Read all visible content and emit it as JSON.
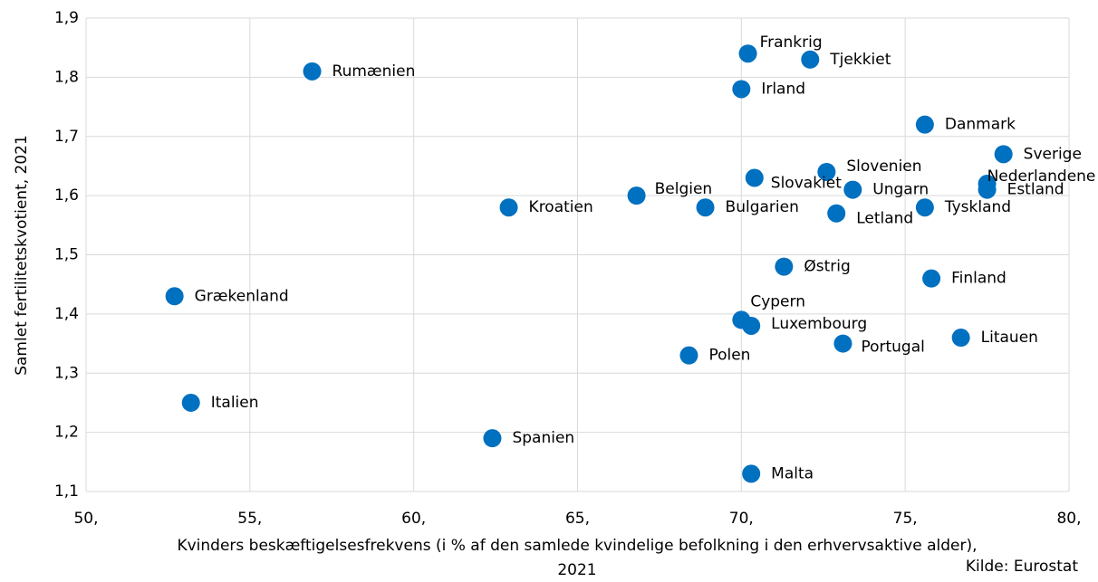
{
  "chart_data": {
    "type": "scatter",
    "ylabel": "Samlet fertilitetskvotient, 2021",
    "xlabel": [
      "Kvinders beskæftigelsesfrekvens (i % af den samlede kvindelige befolkning i den erhvervsaktive alder),",
      "2021"
    ],
    "source": "Kilde: Eurostat",
    "color": "#0070c0",
    "grid": true,
    "point_labels": [
      "Rumænien",
      "Frankrig",
      "Tjekkiet",
      "Irland",
      "Danmark",
      "Sverige",
      "Nederlandene",
      "Estland",
      "Slovenien",
      "Slovakiet",
      "Ungarn",
      "Belgien",
      "Kroatien",
      "Bulgarien",
      "Letland",
      "Tyskland",
      "Østrig",
      "Finland",
      "Grækenland",
      "Cypern",
      "Luxembourg",
      "Portugal",
      "Litauen",
      "Polen",
      "Italien",
      "Spanien",
      "Malta"
    ],
    "x": [
      56.9,
      70.2,
      72.1,
      70.0,
      75.6,
      78.0,
      77.5,
      77.5,
      72.6,
      70.4,
      73.4,
      66.8,
      62.9,
      68.9,
      72.9,
      75.6,
      71.3,
      75.8,
      52.7,
      70.0,
      70.3,
      73.1,
      76.7,
      68.4,
      53.2,
      62.4,
      70.3
    ],
    "values": [
      1.81,
      1.84,
      1.83,
      1.78,
      1.72,
      1.67,
      1.62,
      1.61,
      1.64,
      1.63,
      1.61,
      1.6,
      1.58,
      1.58,
      1.57,
      1.58,
      1.48,
      1.46,
      1.43,
      1.39,
      1.38,
      1.35,
      1.36,
      1.33,
      1.25,
      1.19,
      1.13
    ],
    "xlim": [
      50,
      80
    ],
    "xticks": [
      {
        "value": 50,
        "label": "50,"
      },
      {
        "value": 55,
        "label": "55,"
      },
      {
        "value": 60,
        "label": "60,"
      },
      {
        "value": 65,
        "label": "65,"
      },
      {
        "value": 70,
        "label": "70,"
      },
      {
        "value": 75,
        "label": "75,"
      },
      {
        "value": 80,
        "label": "80,"
      }
    ],
    "ylim": [
      1.1,
      1.9
    ],
    "yticks": [
      {
        "value": 1.1,
        "label": "1,1"
      },
      {
        "value": 1.2,
        "label": "1,2"
      },
      {
        "value": 1.3,
        "label": "1,3"
      },
      {
        "value": 1.4,
        "label": "1,4"
      },
      {
        "value": 1.5,
        "label": "1,5"
      },
      {
        "value": 1.6,
        "label": "1,6"
      },
      {
        "value": 1.7,
        "label": "1,7"
      },
      {
        "value": 1.8,
        "label": "1,8"
      },
      {
        "value": 1.9,
        "label": "1,9"
      }
    ]
  }
}
